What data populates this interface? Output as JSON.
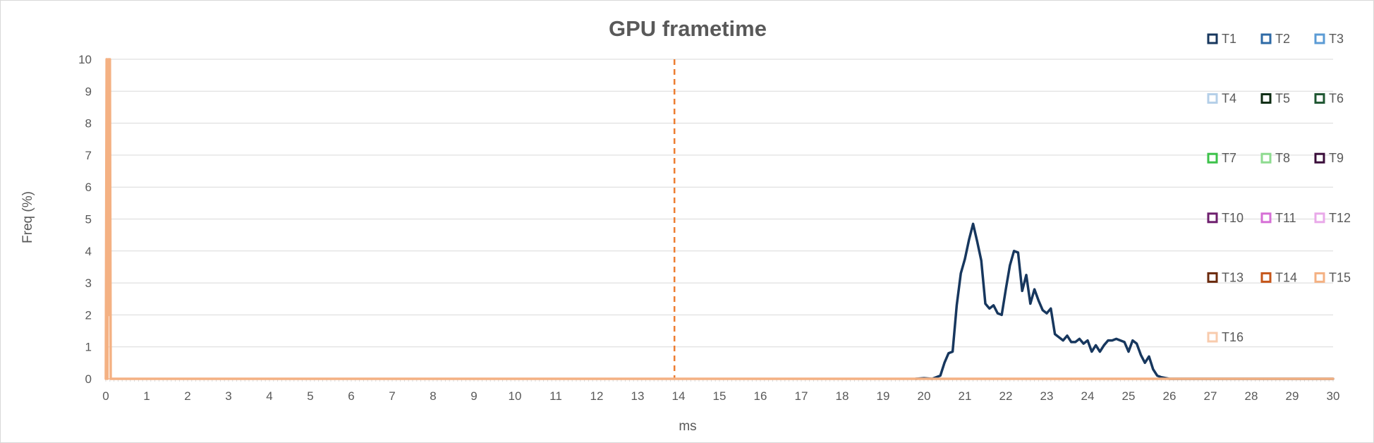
{
  "chart_data": {
    "type": "line",
    "title": "GPU frametime",
    "xlabel": "ms",
    "ylabel": "Freq (%)",
    "xlim": [
      0,
      30
    ],
    "ylim": [
      0,
      10
    ],
    "x_ticks": [
      0,
      1,
      2,
      3,
      4,
      5,
      6,
      7,
      8,
      9,
      10,
      11,
      12,
      13,
      14,
      15,
      16,
      17,
      18,
      19,
      20,
      21,
      22,
      23,
      24,
      25,
      26,
      27,
      28,
      29,
      30
    ],
    "y_ticks": [
      0,
      1,
      2,
      3,
      4,
      5,
      6,
      7,
      8,
      9,
      10
    ],
    "grid": "horizontal",
    "legend_position": "right",
    "series": [
      {
        "name": "T1",
        "color": "#17375e",
        "x": [
          19.8,
          20.0,
          20.2,
          20.4,
          20.5,
          20.6,
          20.7,
          20.8,
          20.9,
          21.0,
          21.1,
          21.2,
          21.3,
          21.4,
          21.5,
          21.6,
          21.7,
          21.8,
          21.9,
          22.0,
          22.1,
          22.2,
          22.3,
          22.4,
          22.5,
          22.6,
          22.7,
          22.8,
          22.9,
          23.0,
          23.1,
          23.2,
          23.3,
          23.4,
          23.5,
          23.6,
          23.7,
          23.8,
          23.9,
          24.0,
          24.1,
          24.2,
          24.3,
          24.4,
          24.5,
          24.6,
          24.7,
          24.8,
          24.9,
          25.0,
          25.1,
          25.2,
          25.3,
          25.4,
          25.5,
          25.6,
          25.7,
          25.8,
          26.0,
          30.0
        ],
        "y": [
          0,
          0.02,
          0,
          0.1,
          0.5,
          0.8,
          0.85,
          2.3,
          3.3,
          3.75,
          4.35,
          4.85,
          4.3,
          3.7,
          2.35,
          2.2,
          2.3,
          2.05,
          2.0,
          2.8,
          3.55,
          4.0,
          3.95,
          2.75,
          3.25,
          2.35,
          2.8,
          2.45,
          2.15,
          2.05,
          2.2,
          1.4,
          1.3,
          1.2,
          1.35,
          1.15,
          1.15,
          1.25,
          1.1,
          1.2,
          0.85,
          1.05,
          0.85,
          1.05,
          1.2,
          1.2,
          1.25,
          1.2,
          1.15,
          0.85,
          1.2,
          1.1,
          0.75,
          0.5,
          0.7,
          0.3,
          0.1,
          0.05,
          0,
          0
        ]
      },
      {
        "name": "T2",
        "color": "#2e6aa6",
        "x": [
          0,
          30
        ],
        "y": [
          0,
          0
        ]
      },
      {
        "name": "T3",
        "color": "#5b9bd5",
        "x": [
          0,
          30
        ],
        "y": [
          0,
          0
        ]
      },
      {
        "name": "T4",
        "color": "#b4cfe8",
        "x": [
          0,
          30
        ],
        "y": [
          0,
          0
        ]
      },
      {
        "name": "T5",
        "color": "#0d2b12",
        "x": [
          0,
          30
        ],
        "y": [
          0,
          0
        ]
      },
      {
        "name": "T6",
        "color": "#1e5631",
        "x": [
          0,
          30
        ],
        "y": [
          0,
          0
        ]
      },
      {
        "name": "T7",
        "color": "#3cc24a",
        "x": [
          0,
          30
        ],
        "y": [
          0,
          0
        ]
      },
      {
        "name": "T8",
        "color": "#8ddb8f",
        "x": [
          0,
          30
        ],
        "y": [
          0,
          0
        ]
      },
      {
        "name": "T9",
        "color": "#3a0d3a",
        "x": [
          0,
          30
        ],
        "y": [
          0,
          0
        ]
      },
      {
        "name": "T10",
        "color": "#6e1f6e",
        "x": [
          0,
          30
        ],
        "y": [
          0,
          0
        ]
      },
      {
        "name": "T11",
        "color": "#d66fd6",
        "x": [
          0,
          30
        ],
        "y": [
          0,
          0
        ]
      },
      {
        "name": "T12",
        "color": "#e9a9e9",
        "x": [
          0,
          30
        ],
        "y": [
          0,
          0
        ]
      },
      {
        "name": "T13",
        "color": "#6b2a0d",
        "x": [
          0,
          30
        ],
        "y": [
          0,
          0
        ]
      },
      {
        "name": "T14",
        "color": "#c5561a",
        "x": [
          0,
          30
        ],
        "y": [
          0,
          0
        ]
      },
      {
        "name": "T15",
        "color": "#f4b183",
        "x": [
          0,
          0.02,
          0.04,
          0.06,
          0.08,
          0.1,
          0.12,
          0.14,
          30
        ],
        "y": [
          0,
          10,
          0,
          10,
          2,
          10,
          0,
          0,
          0
        ]
      },
      {
        "name": "T16",
        "color": "#f8cbad",
        "x": [
          0,
          30
        ],
        "y": [
          0,
          0
        ]
      }
    ],
    "reference_lines": [
      {
        "x": 13.9,
        "color": "#ed7d31",
        "style": "dashed"
      }
    ]
  }
}
